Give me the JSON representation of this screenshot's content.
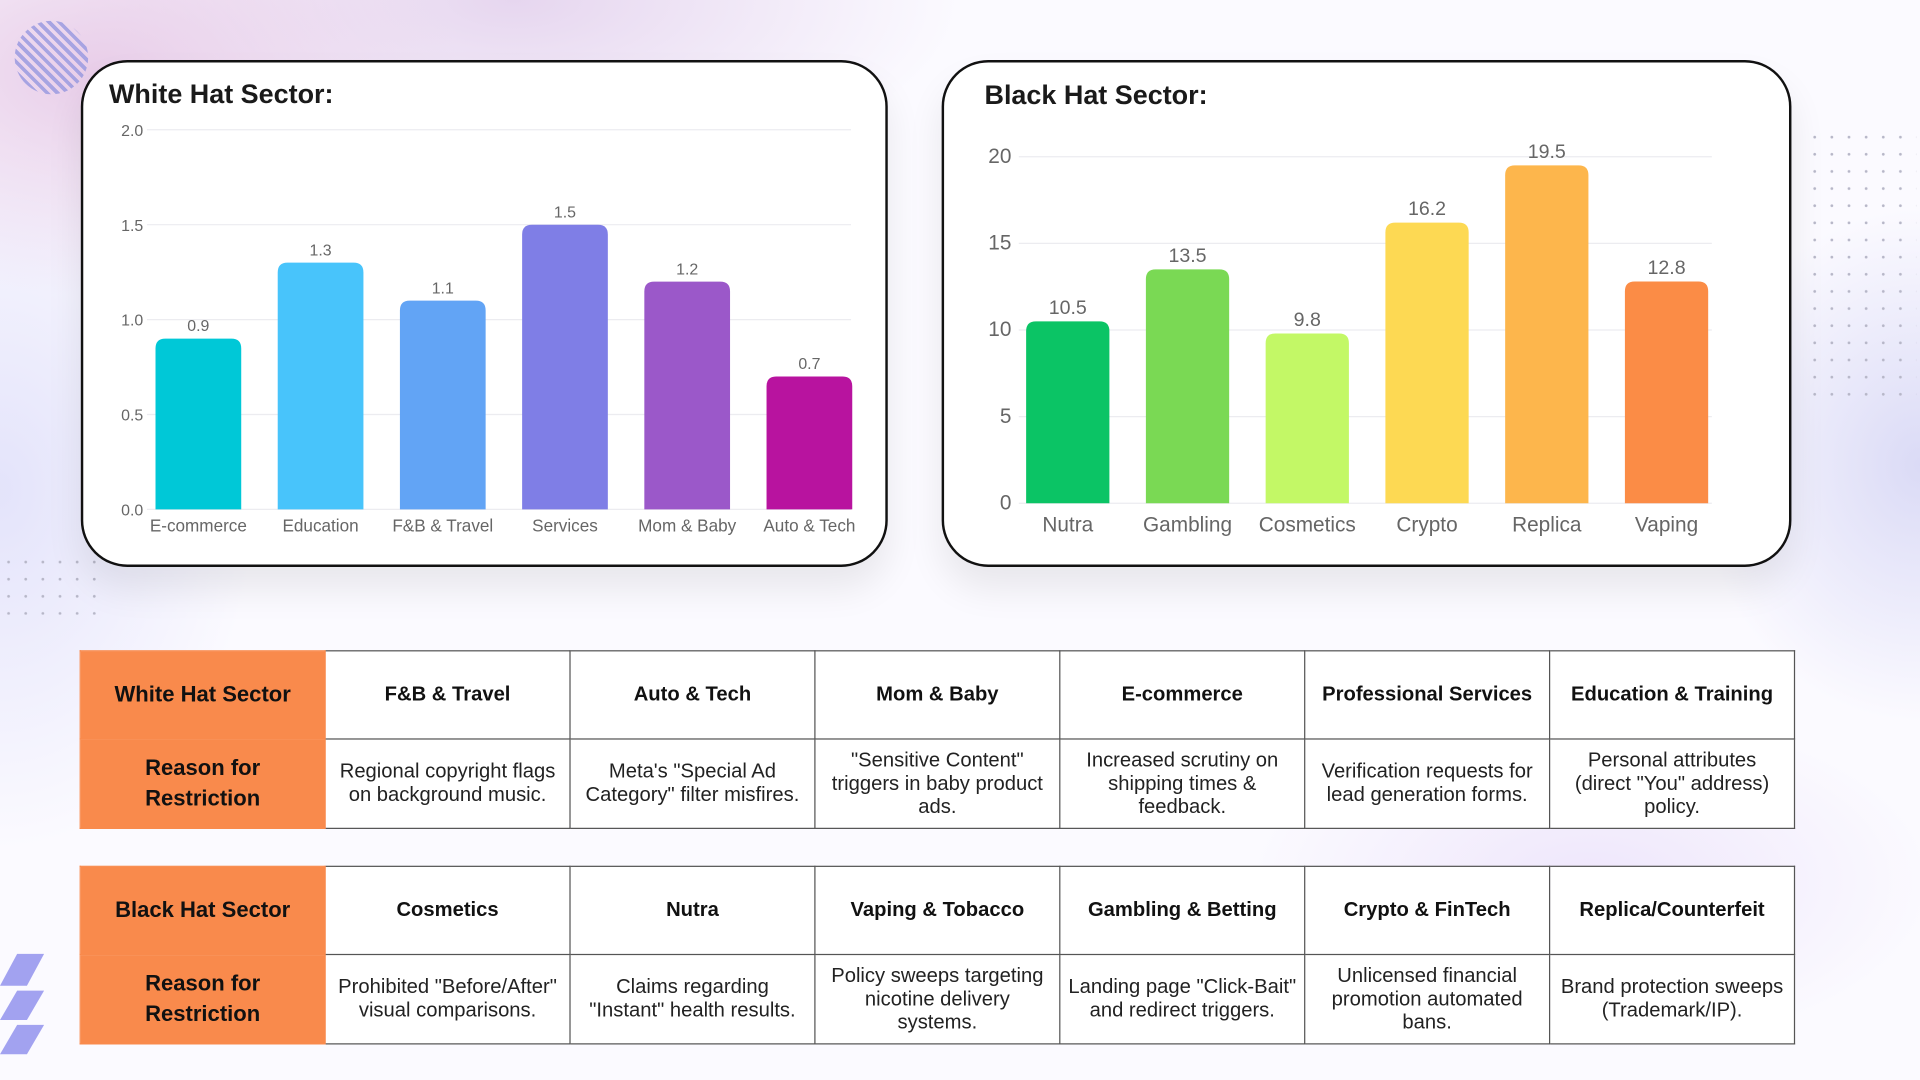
{
  "colors": {
    "header": "#f98a4c",
    "border": "#111111"
  },
  "chart_data": [
    {
      "type": "bar",
      "title": "White Hat Sector:",
      "categories": [
        "E-commerce",
        "Education",
        "F&B & Travel",
        "Services",
        "Mom & Baby",
        "Auto & Tech"
      ],
      "values": [
        0.9,
        1.3,
        1.1,
        1.5,
        1.2,
        0.7
      ],
      "value_labels": [
        "0.9",
        "1.3",
        "1.1",
        "1.5",
        "1.2",
        "0.7"
      ],
      "colors": [
        "#00c8d7",
        "#48c4fb",
        "#62a4f5",
        "#7f7ee6",
        "#9b58c9",
        "#b8139f"
      ],
      "ylim": [
        0,
        2
      ],
      "yticks": [
        "0.0",
        "0.5",
        "1.0",
        "1.5",
        "2.0"
      ],
      "ytick_values": [
        0,
        0.5,
        1,
        1.5,
        2
      ],
      "grid": true,
      "xlabel": "",
      "ylabel": ""
    },
    {
      "type": "bar",
      "title": "Black Hat Sector:",
      "categories": [
        "Nutra",
        "Gambling",
        "Cosmetics",
        "Crypto",
        "Replica",
        "Vaping"
      ],
      "values": [
        10.5,
        13.5,
        9.8,
        16.2,
        19.5,
        12.8
      ],
      "value_labels": [
        "10.5",
        "13.5",
        "9.8",
        "16.2",
        "19.5",
        "12.8"
      ],
      "colors": [
        "#0bc465",
        "#7ad954",
        "#c3f866",
        "#fdd953",
        "#fdb64c",
        "#fb8c46"
      ],
      "ylim": [
        0,
        20
      ],
      "yticks": [
        "0",
        "5",
        "10",
        "15",
        "20"
      ],
      "ytick_values": [
        0,
        5,
        10,
        15,
        20
      ],
      "grid": true,
      "xlabel": "",
      "ylabel": ""
    }
  ],
  "tables": [
    {
      "sector_label": "White Hat Sector",
      "reason_label": "Reason for Restriction",
      "sectors": [
        "F&B & Travel",
        "Auto & Tech",
        "Mom & Baby",
        "E-commerce",
        "Professional Services",
        "Education & Training"
      ],
      "reasons": [
        "Regional copyright flags on background music.",
        "Meta's \"Special Ad Category\" filter misfires.",
        "\"Sensitive Content\" triggers in baby product ads.",
        "Increased scrutiny on shipping times & feedback.",
        "Verification requests for lead generation forms.",
        "Personal attributes (direct \"You\" address) policy."
      ]
    },
    {
      "sector_label": "Black Hat Sector",
      "reason_label": "Reason for Restriction",
      "sectors": [
        "Cosmetics",
        "Nutra",
        "Vaping & Tobacco",
        "Gambling & Betting",
        "Crypto & FinTech",
        "Replica/Counterfeit"
      ],
      "reasons": [
        "Prohibited \"Before/After\" visual comparisons.",
        "Claims regarding \"Instant\" health results.",
        "Policy sweeps targeting nicotine delivery systems.",
        "Landing page \"Click-Bait\" and redirect triggers.",
        "Unlicensed financial promotion automated bans.",
        "Brand protection sweeps (Trademark/IP)."
      ]
    }
  ]
}
